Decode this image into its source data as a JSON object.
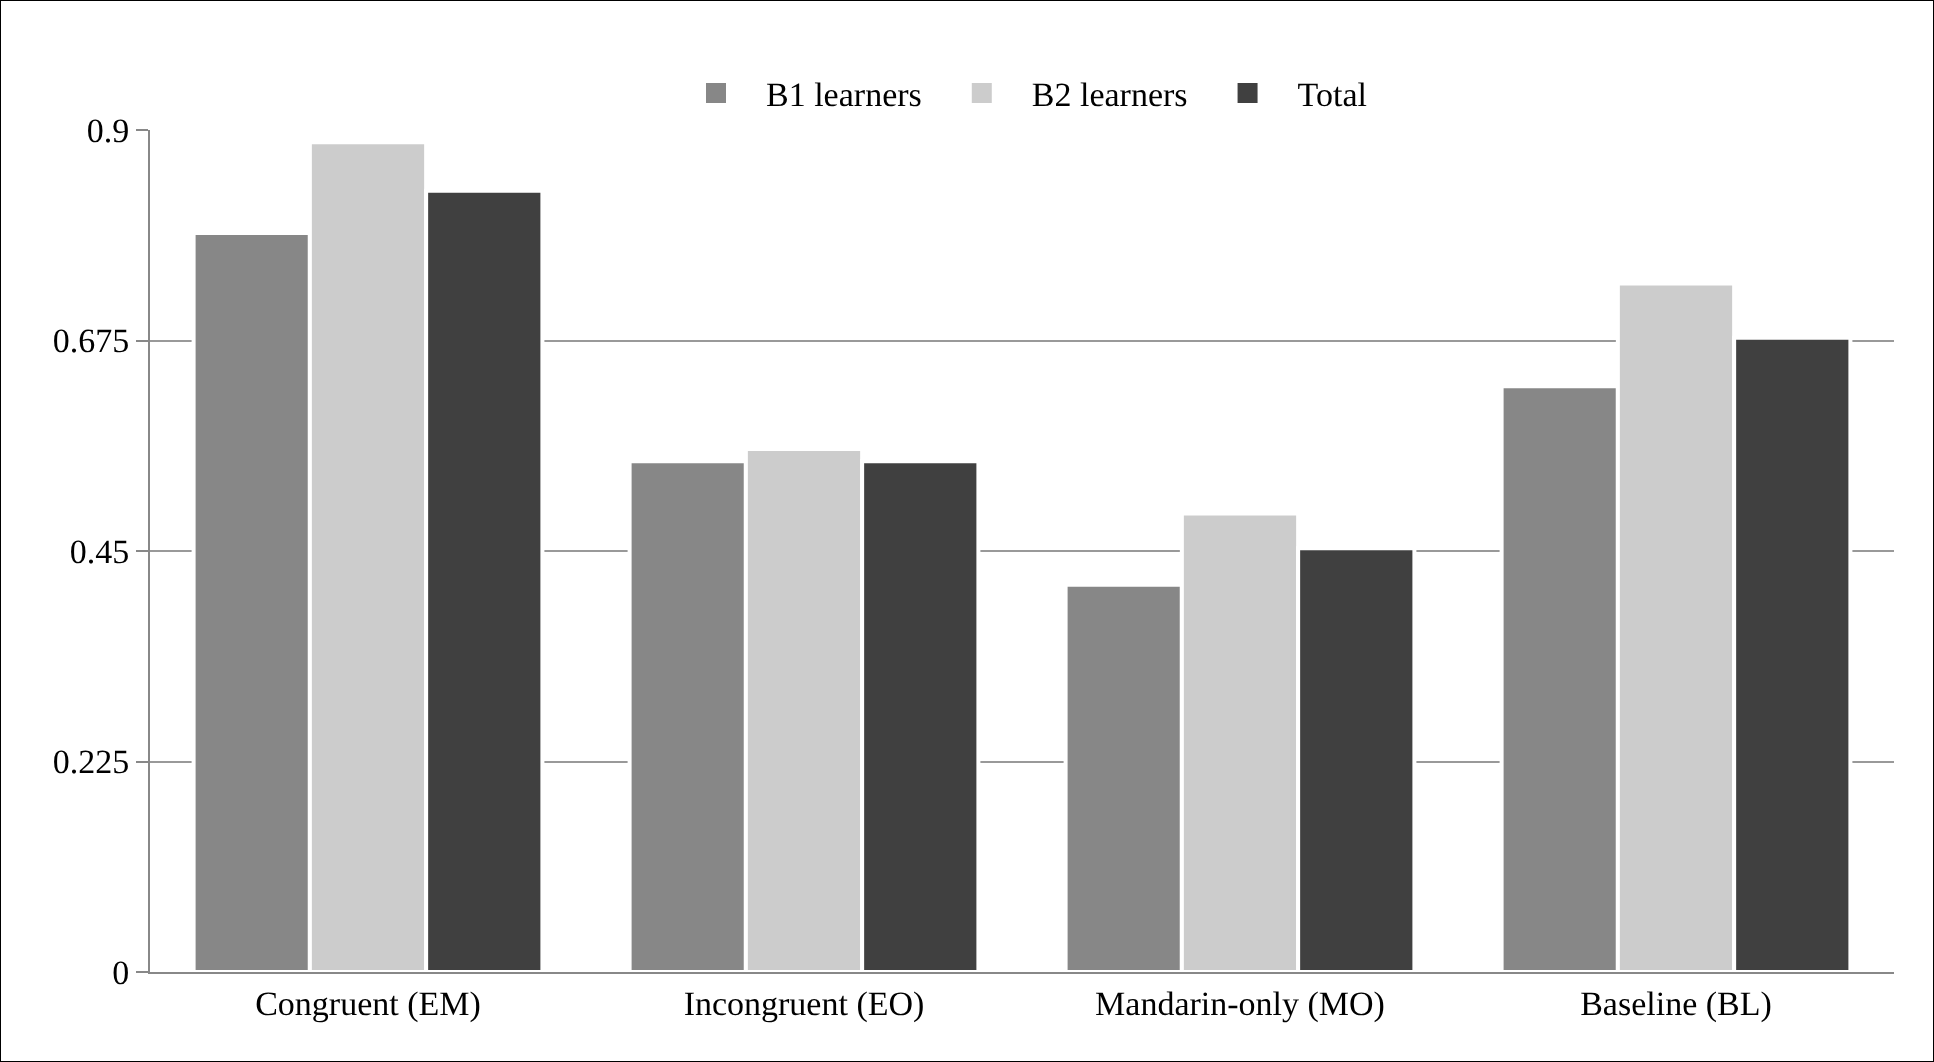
{
  "chart_data": {
    "type": "bar",
    "categories": [
      "Congruent (EM)",
      "Incongruent (EO)",
      "Mandarin-only (MO)",
      "Baseline (BL)"
    ],
    "series": [
      {
        "name": "B1 learners",
        "color": "#878787",
        "values": [
          0.79,
          0.546,
          0.414,
          0.626
        ]
      },
      {
        "name": "B2 learners",
        "color": "#cccccc",
        "values": [
          0.887,
          0.559,
          0.49,
          0.736
        ]
      },
      {
        "name": "Total",
        "color": "#404040",
        "values": [
          0.835,
          0.546,
          0.453,
          0.678
        ]
      }
    ],
    "ylim": [
      0,
      0.9
    ],
    "yticks": [
      0,
      0.225,
      0.45,
      0.675,
      0.9
    ],
    "grid": "y",
    "legend": "top"
  }
}
